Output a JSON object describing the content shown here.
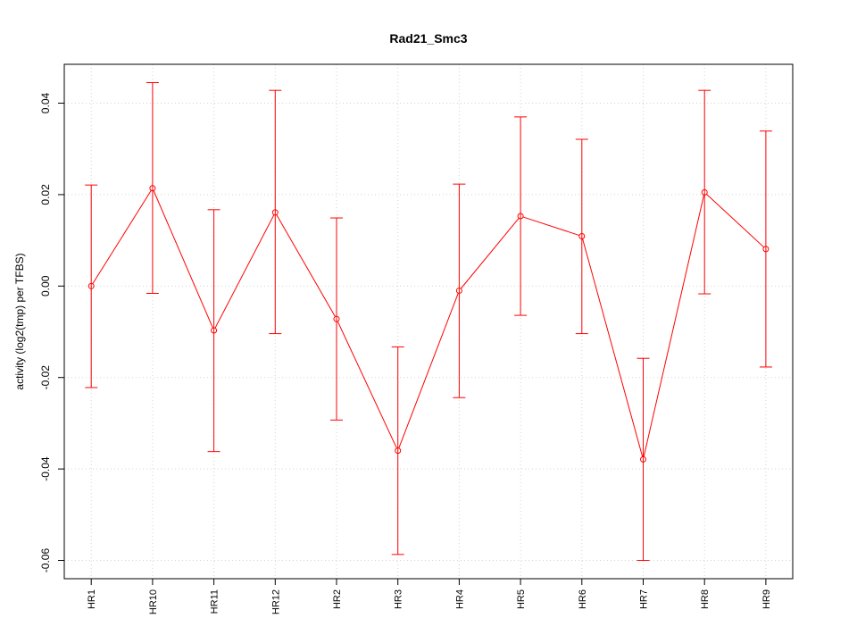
{
  "chart_data": {
    "type": "line",
    "title": "Rad21_Smc3",
    "xlabel": "",
    "ylabel": "activity (log2(tmp) per TFBS)",
    "categories": [
      "HR1",
      "HR10",
      "HR11",
      "HR12",
      "HR2",
      "HR3",
      "HR4",
      "HR5",
      "HR6",
      "HR7",
      "HR8",
      "HR9"
    ],
    "values": [
      0.0,
      0.0214,
      -0.0097,
      0.0161,
      -0.0072,
      -0.036,
      -0.001,
      0.0153,
      0.0109,
      -0.0379,
      0.0205,
      0.0081
    ],
    "error_upper": [
      0.0221,
      0.0445,
      0.0167,
      0.0428,
      0.0149,
      -0.0133,
      0.0223,
      0.037,
      0.0321,
      -0.0158,
      0.0428,
      0.0339
    ],
    "error_lower": [
      -0.0222,
      -0.0016,
      -0.0362,
      -0.0104,
      -0.0293,
      -0.0587,
      -0.0244,
      -0.0064,
      -0.0104,
      -0.06,
      -0.0017,
      -0.0177
    ],
    "yticks": [
      -0.06,
      -0.04,
      -0.02,
      0.0,
      0.02,
      0.04
    ],
    "ytick_labels": [
      "-0.06",
      "-0.04",
      "-0.02",
      "0.00",
      "0.02",
      "0.04"
    ],
    "ylim": [
      -0.064,
      0.0485
    ],
    "grid": true,
    "colors": {
      "series": "#ff0000",
      "grid": "#d3d3d3",
      "axis": "#000000"
    }
  }
}
